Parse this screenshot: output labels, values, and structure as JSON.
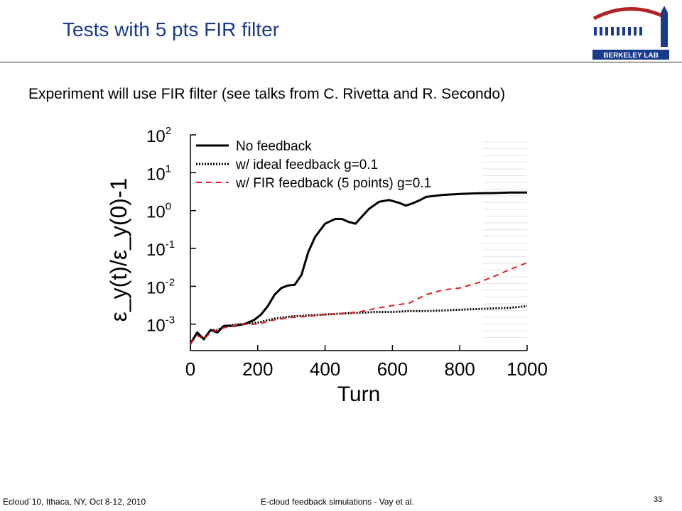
{
  "slide": {
    "title": "Tests with 5 pts FIR filter",
    "subtitle": "Experiment will use FIR filter (see talks from C. Rivetta and R. Secondo)",
    "logo_text": "BERKELEY LAB"
  },
  "footer": {
    "left": "Ecloud`10, Ithaca, NY, Oct 8-12, 2010",
    "center": "E-cloud feedback simulations - Vay et al.",
    "page": "33"
  },
  "colors": {
    "title": "#1a3a8c",
    "logo_red": "#b22222",
    "logo_blue": "#1a3a8c",
    "series_no_feedback": "#000000",
    "series_ideal": "#000000",
    "series_fir": "#e02020"
  },
  "chart_data": {
    "type": "line",
    "xlabel": "Turn",
    "ylabel": "ε_y(t)/ε_y(0)-1",
    "xlim": [
      0,
      1000
    ],
    "ylim": [
      0.0002,
      100
    ],
    "yscale": "log",
    "xticks": [
      "0",
      "200",
      "400",
      "600",
      "800",
      "1000"
    ],
    "yticks": [
      {
        "base": "10",
        "exp": "2"
      },
      {
        "base": "10",
        "exp": "1"
      },
      {
        "base": "10",
        "exp": "0"
      },
      {
        "base": "10",
        "exp": "-1"
      },
      {
        "base": "10",
        "exp": "-2"
      },
      {
        "base": "10",
        "exp": "-3"
      }
    ],
    "legend_position": "top-left",
    "series": [
      {
        "name": "No feedback",
        "style": "solid",
        "x": [
          0,
          20,
          40,
          60,
          80,
          100,
          130,
          160,
          190,
          210,
          230,
          250,
          270,
          290,
          310,
          330,
          350,
          370,
          400,
          430,
          450,
          470,
          490,
          510,
          530,
          560,
          590,
          620,
          640,
          660,
          680,
          700,
          750,
          800,
          850,
          900,
          950,
          1000
        ],
        "y": [
          0.0003,
          0.0006,
          0.0004,
          0.0007,
          0.0006,
          0.0009,
          0.0009,
          0.001,
          0.0013,
          0.0018,
          0.003,
          0.006,
          0.009,
          0.0105,
          0.011,
          0.02,
          0.08,
          0.2,
          0.45,
          0.6,
          0.6,
          0.5,
          0.45,
          0.7,
          1.1,
          1.7,
          1.9,
          1.6,
          1.35,
          1.55,
          1.85,
          2.3,
          2.6,
          2.75,
          2.85,
          2.9,
          3.0,
          3.0
        ]
      },
      {
        "name": "w/ ideal feedback g=0.1",
        "style": "dotted",
        "x": [
          0,
          20,
          40,
          60,
          80,
          100,
          150,
          200,
          250,
          300,
          350,
          400,
          450,
          500,
          550,
          600,
          650,
          700,
          750,
          800,
          850,
          900,
          950,
          1000
        ],
        "y": [
          0.0003,
          0.0006,
          0.0004,
          0.0007,
          0.0007,
          0.0009,
          0.001,
          0.0011,
          0.0014,
          0.0016,
          0.0017,
          0.0018,
          0.0019,
          0.002,
          0.0021,
          0.0021,
          0.0022,
          0.0022,
          0.0023,
          0.0024,
          0.0025,
          0.0026,
          0.0027,
          0.003
        ]
      },
      {
        "name": "w/ FIR feedback (5 points) g=0.1",
        "style": "dashed",
        "x": [
          0,
          20,
          40,
          60,
          80,
          100,
          150,
          200,
          250,
          300,
          350,
          400,
          450,
          500,
          550,
          600,
          650,
          700,
          750,
          800,
          850,
          900,
          950,
          1000
        ],
        "y": [
          0.0003,
          0.0005,
          0.0004,
          0.0006,
          0.0007,
          0.0008,
          0.001,
          0.001,
          0.0013,
          0.0015,
          0.0016,
          0.0018,
          0.0019,
          0.0021,
          0.0026,
          0.0031,
          0.0036,
          0.006,
          0.008,
          0.009,
          0.012,
          0.018,
          0.028,
          0.042
        ]
      }
    ]
  }
}
